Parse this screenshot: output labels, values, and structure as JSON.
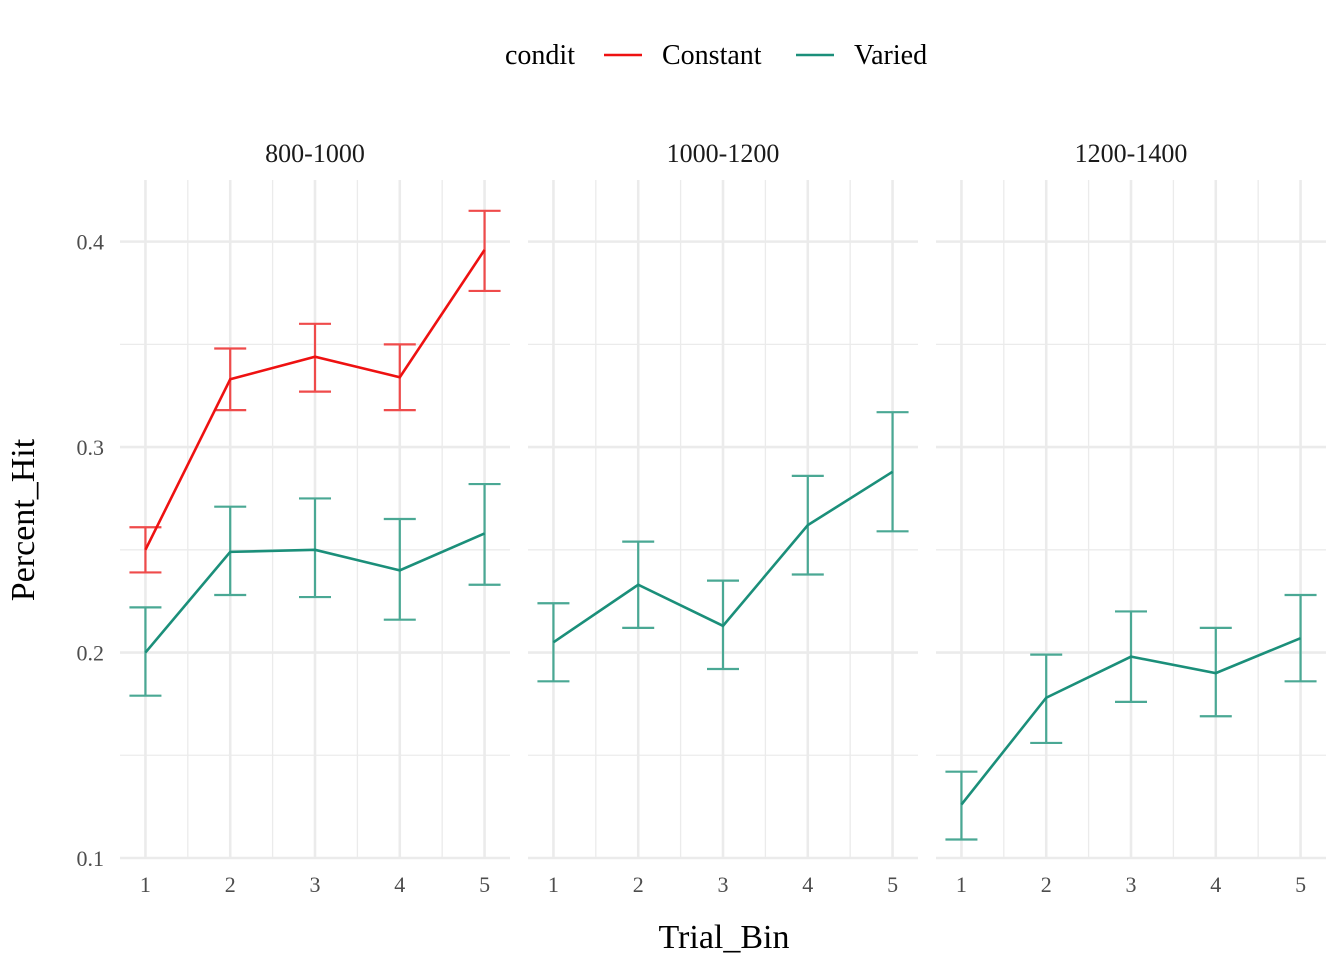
{
  "legend": {
    "title": "condit",
    "position": "top",
    "entries": [
      {
        "label": "Constant",
        "color": "#ee1111"
      },
      {
        "label": "Varied",
        "color": "#1b8f7a"
      }
    ]
  },
  "axes": {
    "xlabel": "Trial_Bin",
    "ylabel": "Percent_Hit"
  },
  "chart_data": {
    "type": "line",
    "facets": [
      "800-1000",
      "1000-1200",
      "1200-1400"
    ],
    "x": [
      1,
      2,
      3,
      4,
      5
    ],
    "xlim": [
      0.7,
      5.3
    ],
    "ylim": [
      0.1,
      0.43
    ],
    "yticks": [
      0.1,
      0.2,
      0.3,
      0.4
    ],
    "ytick_labels": [
      "0.1",
      "0.2",
      "0.3",
      "0.4"
    ],
    "xticks": [
      1,
      2,
      3,
      4,
      5
    ],
    "xtick_labels": [
      "1",
      "2",
      "3",
      "4",
      "5"
    ],
    "xlabel": "Trial_Bin",
    "ylabel": "Percent_Hit",
    "grid": true,
    "legend_title": "condit",
    "legend_position": "top",
    "series": [
      {
        "name": "Constant",
        "color": "#ee1111",
        "errbar_color": "#ef4b4b",
        "panels": [
          {
            "facet": "800-1000",
            "y": [
              0.25,
              0.333,
              0.344,
              0.334,
              0.396
            ],
            "lower": [
              0.239,
              0.318,
              0.327,
              0.318,
              0.376
            ],
            "upper": [
              0.261,
              0.348,
              0.36,
              0.35,
              0.415
            ]
          }
        ]
      },
      {
        "name": "Varied",
        "color": "#1b8f7a",
        "errbar_color": "#4aa894",
        "panels": [
          {
            "facet": "800-1000",
            "y": [
              0.2,
              0.249,
              0.25,
              0.24,
              0.258
            ],
            "lower": [
              0.179,
              0.228,
              0.227,
              0.216,
              0.233
            ],
            "upper": [
              0.222,
              0.271,
              0.275,
              0.265,
              0.282
            ]
          },
          {
            "facet": "1000-1200",
            "y": [
              0.205,
              0.233,
              0.213,
              0.262,
              0.288
            ],
            "lower": [
              0.186,
              0.212,
              0.192,
              0.238,
              0.259
            ],
            "upper": [
              0.224,
              0.254,
              0.235,
              0.286,
              0.317
            ]
          },
          {
            "facet": "1200-1400",
            "y": [
              0.126,
              0.178,
              0.198,
              0.19,
              0.207
            ],
            "lower": [
              0.109,
              0.156,
              0.176,
              0.169,
              0.186
            ],
            "upper": [
              0.142,
              0.199,
              0.22,
              0.212,
              0.228
            ]
          }
        ]
      }
    ]
  }
}
